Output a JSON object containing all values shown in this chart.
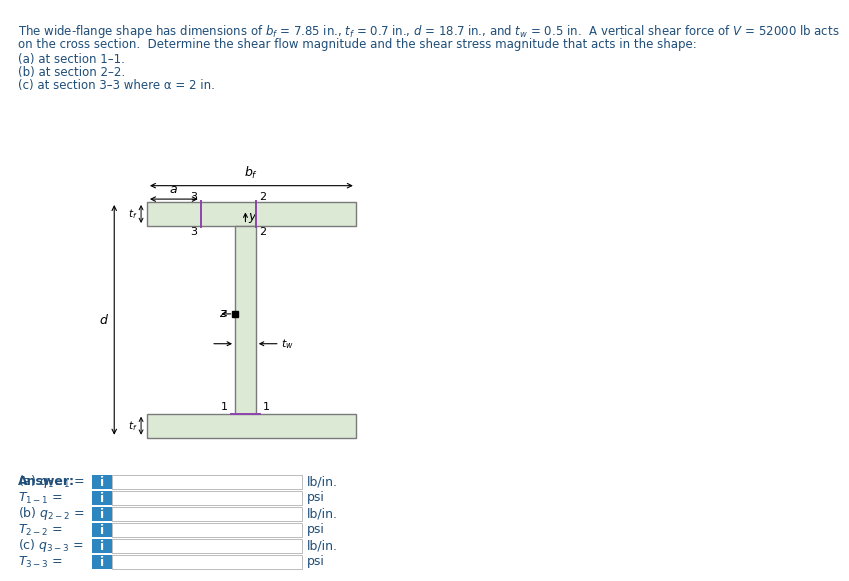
{
  "text_color": "#1f4e79",
  "text_color_dark": "#1a1a1a",
  "box_fill": "#2e86c1",
  "shape_fill": "#dce9d5",
  "shape_edge": "#7a7a7a",
  "section_line_color": "#8e44ad",
  "input_box_fill": "#ffffff",
  "input_box_edge": "#bbbbbb",
  "line1": "The wide-flange shape has dimensions of b",
  "line1b": " = 7.85 in., t",
  "line1c": " = 0.7 in., d = 18.7 in., and t",
  "line1d": " = 0.5 in.  A vertical shear force of V = 52000 lb acts",
  "line2": "on the cross section.  Determine the shear flow magnitude and the shear stress magnitude that acts in the shape:",
  "sub1": "(a) at section 1–1.",
  "sub2": "(b) at section 2–2.",
  "sub3": "(c) at section 3–3 where a = 2 in.",
  "units": [
    "lb/in.",
    "psi",
    "lb/in.",
    "psi",
    "lb/in.",
    "psi"
  ]
}
